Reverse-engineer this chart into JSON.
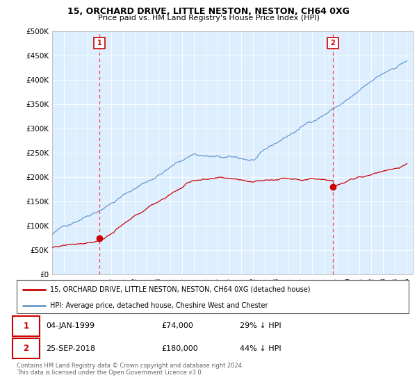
{
  "title": "15, ORCHARD DRIVE, LITTLE NESTON, NESTON, CH64 0XG",
  "subtitle": "Price paid vs. HM Land Registry's House Price Index (HPI)",
  "legend_line1": "15, ORCHARD DRIVE, LITTLE NESTON, NESTON, CH64 0XG (detached house)",
  "legend_line2": "HPI: Average price, detached house, Cheshire West and Chester",
  "footer": "Contains HM Land Registry data © Crown copyright and database right 2024.\nThis data is licensed under the Open Government Licence v3.0.",
  "point1_date": "04-JAN-1999",
  "point1_price": "£74,000",
  "point1_hpi": "29% ↓ HPI",
  "point2_date": "25-SEP-2018",
  "point2_price": "£180,000",
  "point2_hpi": "44% ↓ HPI",
  "color_red": "#cc0000",
  "color_blue": "#6699cc",
  "color_blue_light": "#ddeeff",
  "ylim_min": 0,
  "ylim_max": 500000,
  "yticks": [
    0,
    50000,
    100000,
    150000,
    200000,
    250000,
    300000,
    350000,
    400000,
    450000,
    500000
  ]
}
